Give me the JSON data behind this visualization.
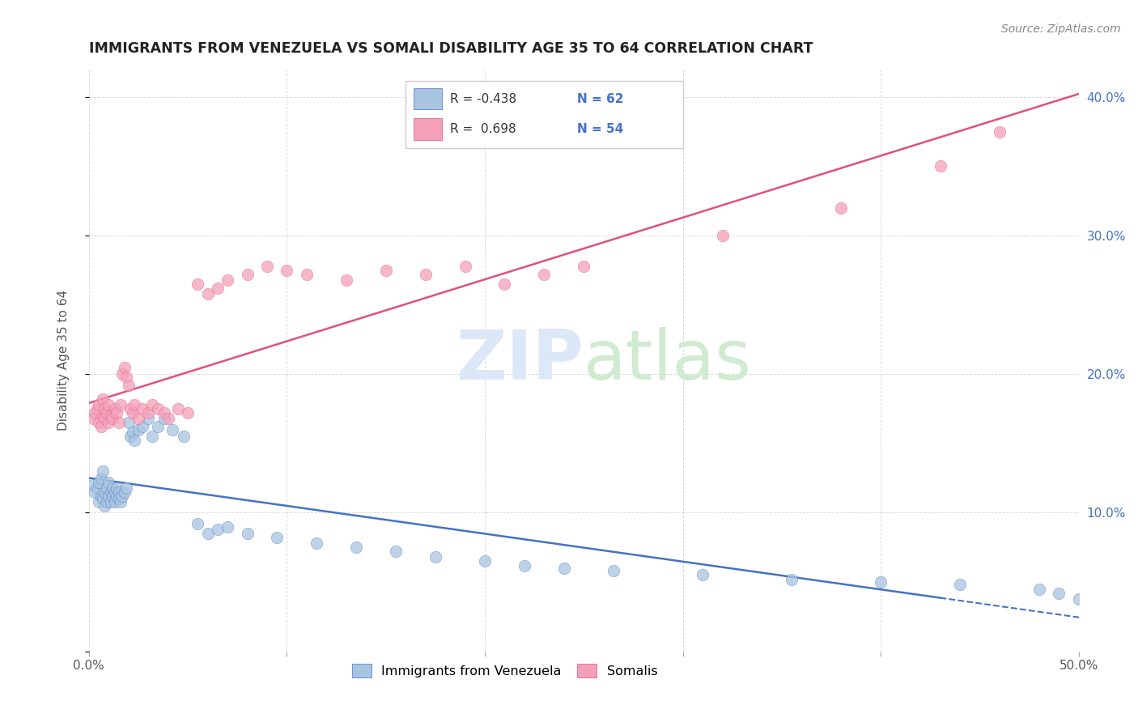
{
  "title": "IMMIGRANTS FROM VENEZUELA VS SOMALI DISABILITY AGE 35 TO 64 CORRELATION CHART",
  "source": "Source: ZipAtlas.com",
  "ylabel": "Disability Age 35 to 64",
  "xlim": [
    0.0,
    0.5
  ],
  "ylim": [
    0.0,
    0.42
  ],
  "xticks": [
    0.0,
    0.1,
    0.2,
    0.3,
    0.4,
    0.5
  ],
  "xticklabels": [
    "0.0%",
    "",
    "",
    "",
    "",
    "50.0%"
  ],
  "yticks_right": [
    0.1,
    0.2,
    0.3,
    0.4
  ],
  "ytick_right_labels": [
    "10.0%",
    "20.0%",
    "30.0%",
    "40.0%"
  ],
  "color_venezuela": "#a8c4e0",
  "color_somali": "#f4a0b8",
  "color_line_venezuela": "#4472c4",
  "color_line_somali": "#e05080",
  "background_color": "#ffffff",
  "grid_color": "#cccccc",
  "venezuela_x": [
    0.002,
    0.003,
    0.004,
    0.005,
    0.005,
    0.006,
    0.006,
    0.007,
    0.007,
    0.008,
    0.008,
    0.009,
    0.009,
    0.01,
    0.01,
    0.011,
    0.011,
    0.012,
    0.012,
    0.013,
    0.013,
    0.014,
    0.014,
    0.015,
    0.015,
    0.016,
    0.017,
    0.018,
    0.019,
    0.02,
    0.021,
    0.022,
    0.023,
    0.025,
    0.027,
    0.03,
    0.032,
    0.035,
    0.038,
    0.042,
    0.048,
    0.055,
    0.06,
    0.065,
    0.07,
    0.08,
    0.095,
    0.115,
    0.135,
    0.155,
    0.175,
    0.2,
    0.22,
    0.24,
    0.265,
    0.31,
    0.355,
    0.4,
    0.44,
    0.48,
    0.49,
    0.5
  ],
  "venezuela_y": [
    0.12,
    0.115,
    0.118,
    0.122,
    0.108,
    0.112,
    0.125,
    0.11,
    0.13,
    0.115,
    0.105,
    0.118,
    0.108,
    0.112,
    0.122,
    0.115,
    0.108,
    0.118,
    0.112,
    0.115,
    0.108,
    0.112,
    0.118,
    0.115,
    0.11,
    0.108,
    0.112,
    0.115,
    0.118,
    0.165,
    0.155,
    0.158,
    0.152,
    0.16,
    0.162,
    0.168,
    0.155,
    0.162,
    0.168,
    0.16,
    0.155,
    0.092,
    0.085,
    0.088,
    0.09,
    0.085,
    0.082,
    0.078,
    0.075,
    0.072,
    0.068,
    0.065,
    0.062,
    0.06,
    0.058,
    0.055,
    0.052,
    0.05,
    0.048,
    0.045,
    0.042,
    0.038
  ],
  "somali_x": [
    0.002,
    0.003,
    0.004,
    0.005,
    0.005,
    0.006,
    0.007,
    0.007,
    0.008,
    0.008,
    0.009,
    0.01,
    0.01,
    0.011,
    0.012,
    0.013,
    0.014,
    0.015,
    0.016,
    0.017,
    0.018,
    0.019,
    0.02,
    0.021,
    0.022,
    0.023,
    0.025,
    0.027,
    0.03,
    0.032,
    0.035,
    0.038,
    0.04,
    0.045,
    0.05,
    0.055,
    0.06,
    0.065,
    0.07,
    0.08,
    0.09,
    0.1,
    0.11,
    0.13,
    0.15,
    0.17,
    0.19,
    0.21,
    0.23,
    0.25,
    0.32,
    0.38,
    0.43,
    0.46
  ],
  "somali_y": [
    0.168,
    0.172,
    0.175,
    0.165,
    0.178,
    0.162,
    0.17,
    0.182,
    0.168,
    0.175,
    0.172,
    0.165,
    0.178,
    0.17,
    0.168,
    0.175,
    0.172,
    0.165,
    0.178,
    0.2,
    0.205,
    0.198,
    0.192,
    0.175,
    0.172,
    0.178,
    0.168,
    0.175,
    0.172,
    0.178,
    0.175,
    0.172,
    0.168,
    0.175,
    0.172,
    0.265,
    0.258,
    0.262,
    0.268,
    0.272,
    0.278,
    0.275,
    0.272,
    0.268,
    0.275,
    0.272,
    0.278,
    0.265,
    0.272,
    0.278,
    0.3,
    0.32,
    0.35,
    0.375
  ]
}
